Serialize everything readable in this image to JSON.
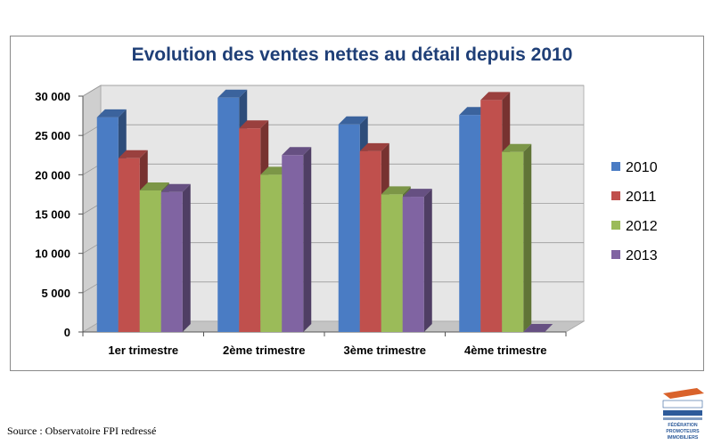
{
  "chart_data": {
    "type": "bar",
    "title": "Evolution des ventes nettes au détail depuis 2010",
    "xlabel": "",
    "ylabel": "",
    "categories": [
      "1er trimestre",
      "2ème trimestre",
      "3ème trimestre",
      "4ème trimestre"
    ],
    "series": [
      {
        "name": "2010",
        "color": "#4a7cc4",
        "values": [
          27300,
          29800,
          26400,
          27600
        ]
      },
      {
        "name": "2011",
        "color": "#c0504d",
        "values": [
          22100,
          25900,
          23000,
          29500
        ]
      },
      {
        "name": "2012",
        "color": "#9bbb59",
        "values": [
          18000,
          20000,
          17500,
          22900
        ]
      },
      {
        "name": "2013",
        "color": "#8064a2",
        "values": [
          17800,
          22500,
          17200,
          0
        ]
      }
    ],
    "ylim": [
      0,
      30000
    ],
    "yticks": [
      0,
      5000,
      10000,
      15000,
      20000,
      25000,
      30000
    ],
    "ytick_labels": [
      "0",
      "5 000",
      "10 000",
      "15 000",
      "20 000",
      "25 000",
      "30 000"
    ],
    "grid": true,
    "legend_position": "right",
    "style": "3d-clustered-column"
  },
  "footer": {
    "source": "Source : Observatoire FPI redressé"
  },
  "logo": {
    "icon": "fpi-logo",
    "text": [
      "FÉDÉRATION",
      "PROMOTEURS",
      "IMMOBILIERS"
    ],
    "colors": [
      "#d9622b",
      "#2e5b9a"
    ]
  }
}
